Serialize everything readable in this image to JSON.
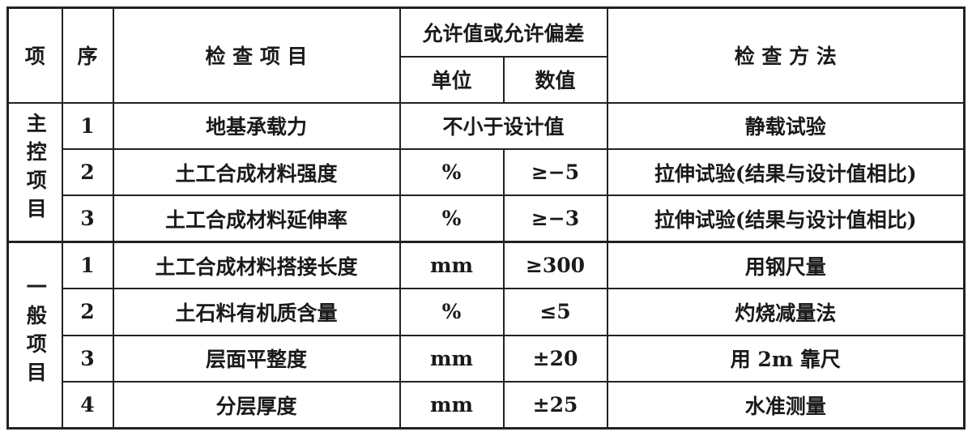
{
  "table": {
    "header": {
      "item": "项",
      "seq": "序",
      "check_item": "检 查 项 目",
      "allowance": "允许值或允许偏差",
      "unit": "单位",
      "value": "数值",
      "method": "检 查 方 法"
    },
    "groups": [
      {
        "label": "主控项目",
        "rows": [
          {
            "seq": "1",
            "item": "地基承载力",
            "allowance": "不小于设计值",
            "method": "静载试验"
          },
          {
            "seq": "2",
            "item": "土工合成材料强度",
            "unit": "%",
            "value": "≥−5",
            "method": "拉伸试验(结果与设计值相比)"
          },
          {
            "seq": "3",
            "item": "土工合成材料延伸率",
            "unit": "%",
            "value": "≥−3",
            "method": "拉伸试验(结果与设计值相比)"
          }
        ]
      },
      {
        "label": "一般项目",
        "rows": [
          {
            "seq": "1",
            "item": "土工合成材料搭接长度",
            "unit": "mm",
            "value": "≥300",
            "method": "用钢尺量"
          },
          {
            "seq": "2",
            "item": "土石料有机质含量",
            "unit": "%",
            "value": "≤5",
            "method": "灼烧减量法"
          },
          {
            "seq": "3",
            "item": "层面平整度",
            "unit": "mm",
            "value": "±20",
            "method": "用 2m 靠尺"
          },
          {
            "seq": "4",
            "item": "分层厚度",
            "unit": "mm",
            "value": "±25",
            "method": "水准测量"
          }
        ]
      }
    ]
  }
}
